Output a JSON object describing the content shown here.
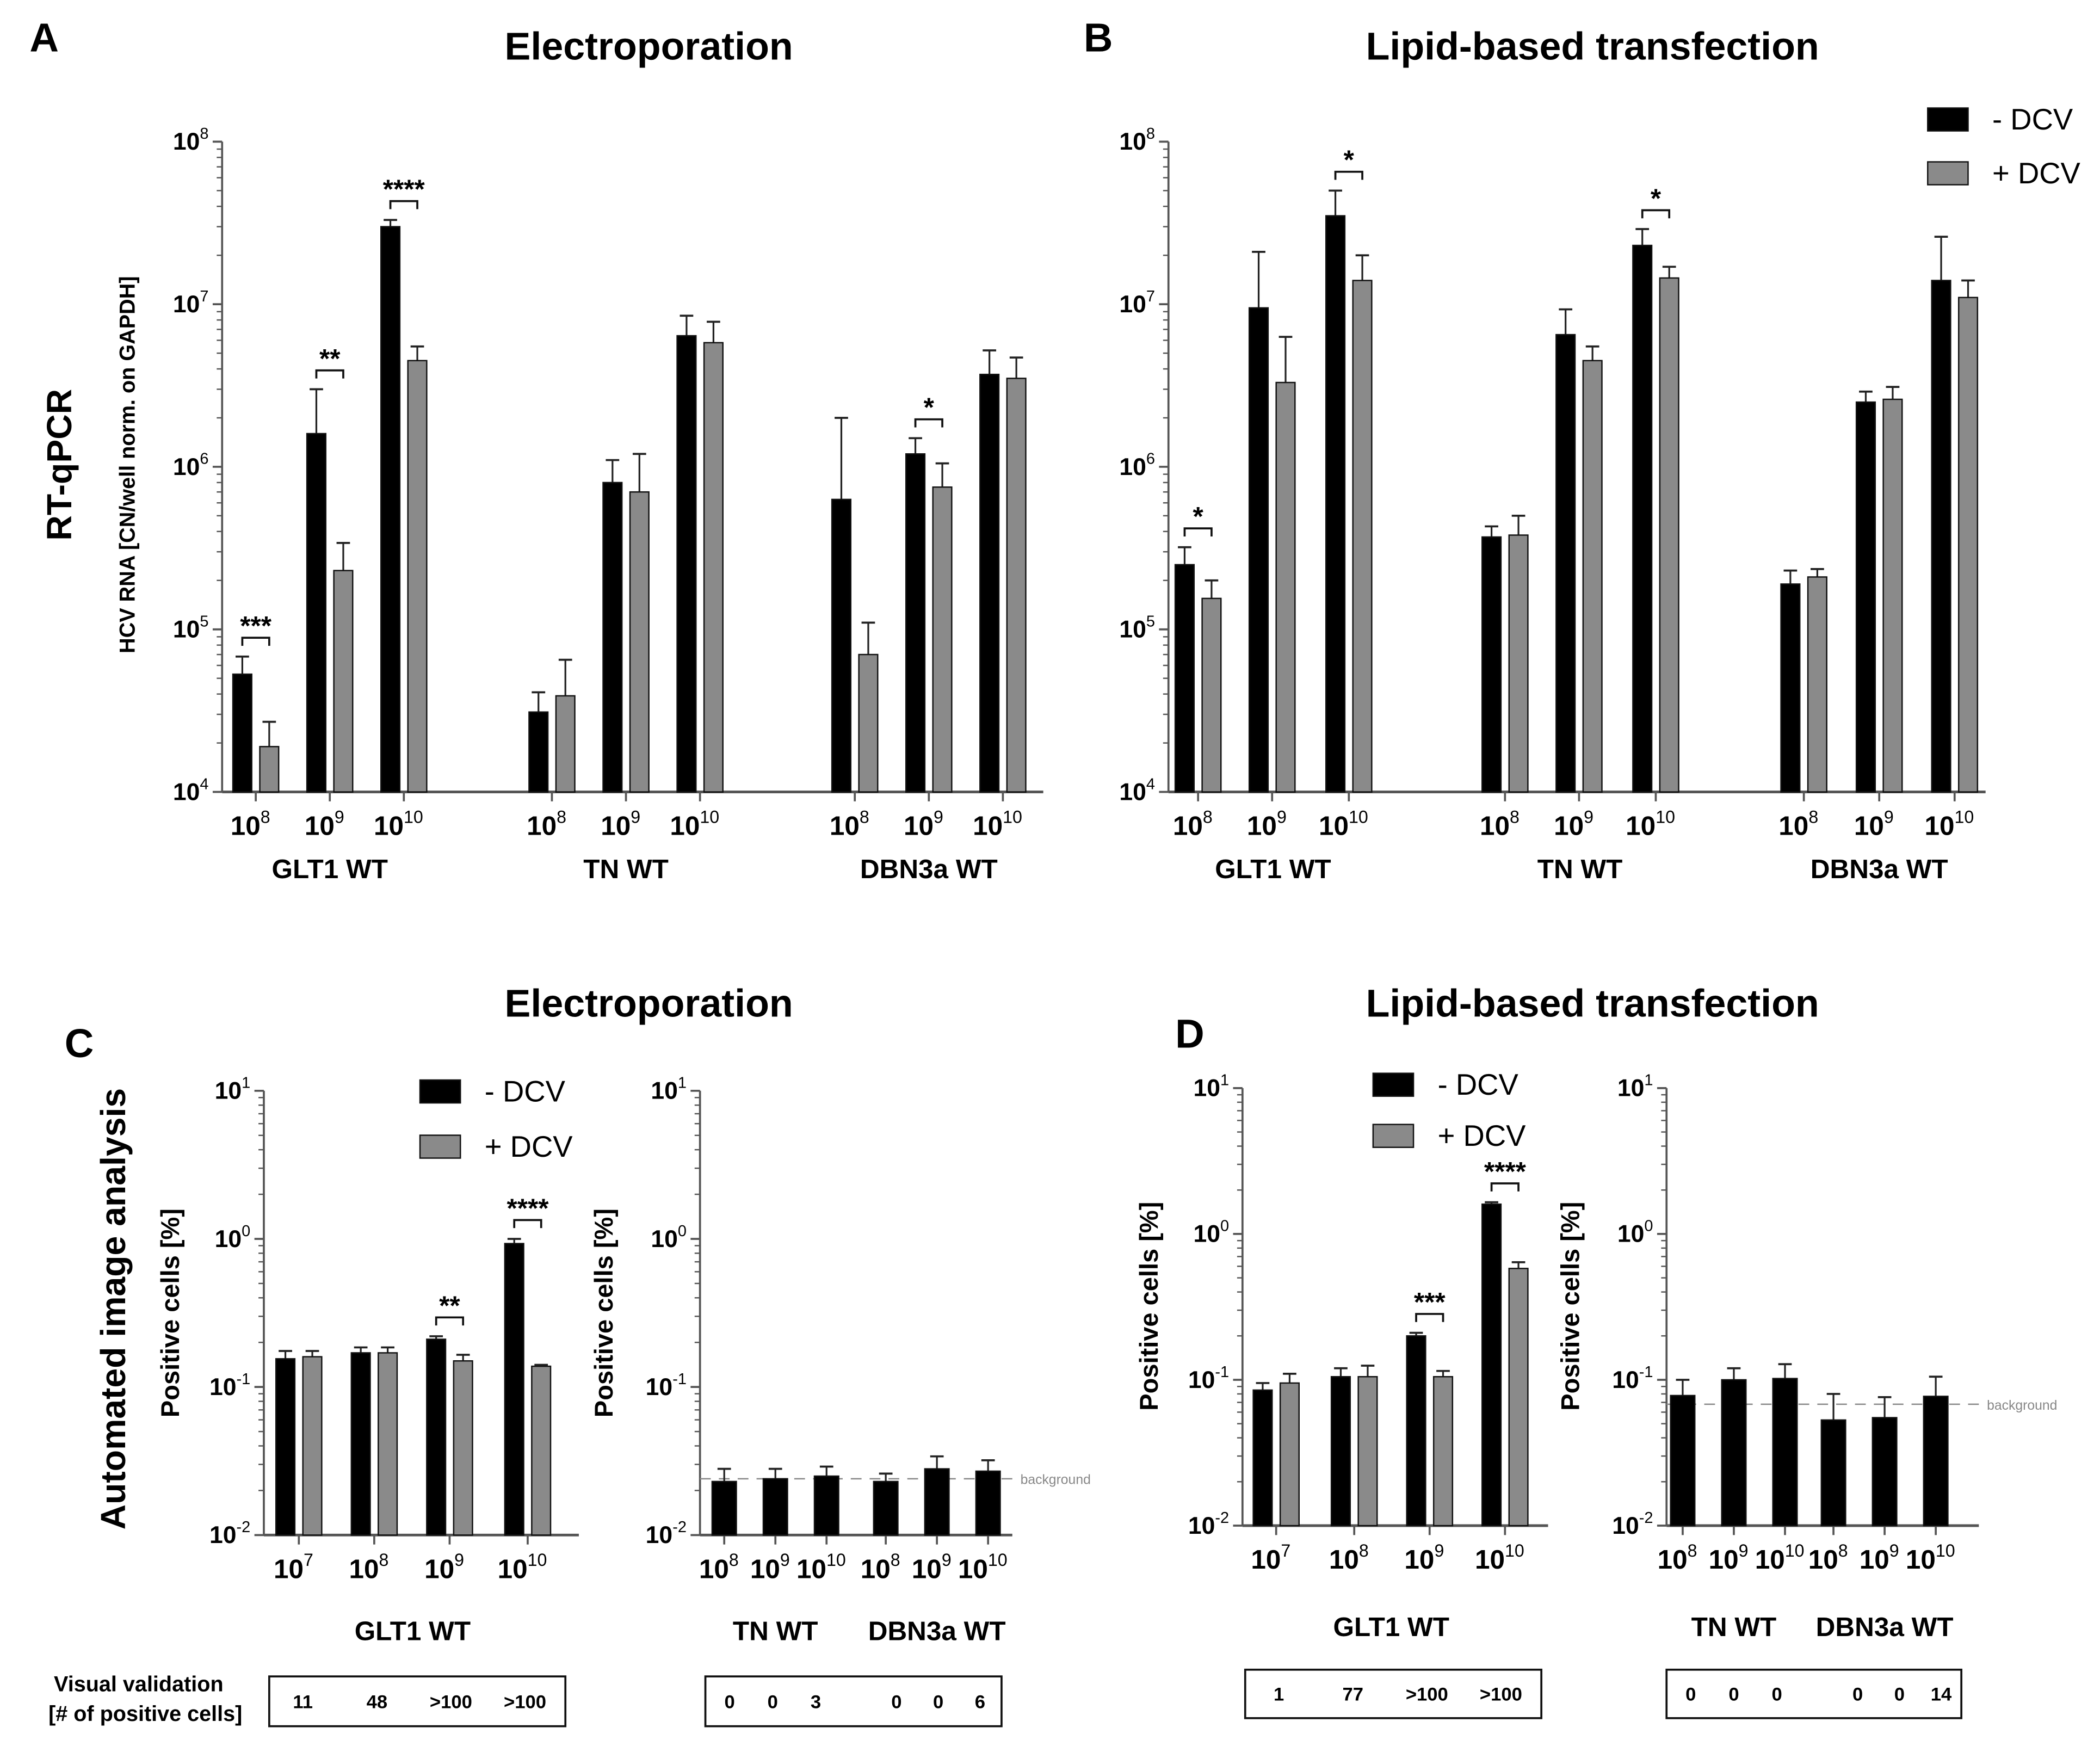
{
  "colors": {
    "minus_dcv": "#000000",
    "plus_dcv": "#8a8a8a",
    "axis": "#555555",
    "background_line": "#888888"
  },
  "row_labels": {
    "top": "RT-qPCR",
    "bottom": "Automated image analysis"
  },
  "validation": {
    "label_line1": "Visual validation",
    "label_line2": "[# of positive cells]",
    "tables": [
      {
        "panel": "C-left",
        "values": [
          "11",
          "48",
          ">100",
          ">100"
        ]
      },
      {
        "panel": "C-right",
        "values": [
          "0",
          "0",
          "3",
          "0",
          "0",
          "6"
        ]
      },
      {
        "panel": "D-left",
        "values": [
          "1",
          "77",
          ">100",
          ">100"
        ]
      },
      {
        "panel": "D-right",
        "values": [
          "0",
          "0",
          "0",
          "0",
          "0",
          "14"
        ]
      }
    ]
  },
  "chart_data": [
    {
      "id": "A",
      "letter": "A",
      "type": "bar",
      "title": "Electroporation",
      "yscale": "log",
      "ylim": [
        10000,
        100000000
      ],
      "ylabel": "HCV RNA [CN/well norm. on GAPDH]",
      "legend": [],
      "series": [
        "- DCV",
        "+ DCV"
      ],
      "groups": [
        {
          "label": "GLT1 WT",
          "categories": [
            {
              "exp": "8",
              "minus": 53000,
              "minus_err": 68000,
              "plus": 19000,
              "plus_err": 27000,
              "sig": "***"
            },
            {
              "exp": "9",
              "minus": 1600000,
              "minus_err": 3000000,
              "plus": 230000,
              "plus_err": 340000,
              "sig": "**"
            },
            {
              "exp": "10",
              "minus": 30000000,
              "minus_err": 33000000,
              "plus": 4500000,
              "plus_err": 5500000,
              "sig": "****"
            }
          ]
        },
        {
          "label": "TN WT",
          "categories": [
            {
              "exp": "8",
              "minus": 31000,
              "minus_err": 41000,
              "plus": 39000,
              "plus_err": 65000,
              "sig": ""
            },
            {
              "exp": "9",
              "minus": 800000,
              "minus_err": 1100000,
              "plus": 700000,
              "plus_err": 1200000,
              "sig": ""
            },
            {
              "exp": "10",
              "minus": 6400000,
              "minus_err": 8500000,
              "plus": 5800000,
              "plus_err": 7800000,
              "sig": ""
            }
          ]
        },
        {
          "label": "DBN3a WT",
          "categories": [
            {
              "exp": "8",
              "minus": 630000,
              "minus_err": 2000000,
              "plus": 70000,
              "plus_err": 110000,
              "sig": ""
            },
            {
              "exp": "9",
              "minus": 1200000,
              "minus_err": 1500000,
              "plus": 750000,
              "plus_err": 1050000,
              "sig": "*"
            },
            {
              "exp": "10",
              "minus": 3700000,
              "minus_err": 5200000,
              "plus": 3500000,
              "plus_err": 4700000,
              "sig": ""
            }
          ]
        }
      ]
    },
    {
      "id": "B",
      "letter": "B",
      "type": "bar",
      "title": "Lipid-based transfection",
      "yscale": "log",
      "ylim": [
        10000,
        100000000
      ],
      "ylabel": "",
      "legend": [
        "- DCV",
        "+ DCV"
      ],
      "series": [
        "- DCV",
        "+ DCV"
      ],
      "groups": [
        {
          "label": "GLT1 WT",
          "categories": [
            {
              "exp": "8",
              "minus": 250000,
              "minus_err": 320000,
              "plus": 155000,
              "plus_err": 200000,
              "sig": "*"
            },
            {
              "exp": "9",
              "minus": 9500000,
              "minus_err": 21000000,
              "plus": 3300000,
              "plus_err": 6300000,
              "sig": ""
            },
            {
              "exp": "10",
              "minus": 35000000,
              "minus_err": 50000000,
              "plus": 14000000,
              "plus_err": 20000000,
              "sig": "*"
            }
          ]
        },
        {
          "label": "TN WT",
          "categories": [
            {
              "exp": "8",
              "minus": 370000,
              "minus_err": 430000,
              "plus": 380000,
              "plus_err": 500000,
              "sig": ""
            },
            {
              "exp": "9",
              "minus": 6500000,
              "minus_err": 9300000,
              "plus": 4500000,
              "plus_err": 5500000,
              "sig": ""
            },
            {
              "exp": "10",
              "minus": 23000000,
              "minus_err": 29000000,
              "plus": 14500000,
              "plus_err": 17000000,
              "sig": "*"
            }
          ]
        },
        {
          "label": "DBN3a WT",
          "categories": [
            {
              "exp": "8",
              "minus": 190000,
              "minus_err": 230000,
              "plus": 210000,
              "plus_err": 235000,
              "sig": ""
            },
            {
              "exp": "9",
              "minus": 2500000,
              "minus_err": 2900000,
              "plus": 2600000,
              "plus_err": 3100000,
              "sig": ""
            },
            {
              "exp": "10",
              "minus": 14000000,
              "minus_err": 26000000,
              "plus": 11000000,
              "plus_err": 14000000,
              "sig": ""
            }
          ]
        }
      ]
    },
    {
      "id": "C-left",
      "letter": "C",
      "type": "bar",
      "title": "Electroporation",
      "yscale": "log",
      "ylim": [
        0.01,
        10
      ],
      "ylabel": "Positive cells [%]",
      "legend": [
        "- DCV",
        "+ DCV"
      ],
      "series": [
        "- DCV",
        "+ DCV"
      ],
      "groups": [
        {
          "label": "GLT1 WT",
          "categories": [
            {
              "exp": "7",
              "minus": 0.155,
              "minus_err": 0.175,
              "plus": 0.16,
              "plus_err": 0.175,
              "sig": ""
            },
            {
              "exp": "8",
              "minus": 0.17,
              "minus_err": 0.185,
              "plus": 0.17,
              "plus_err": 0.185,
              "sig": ""
            },
            {
              "exp": "9",
              "minus": 0.21,
              "minus_err": 0.22,
              "plus": 0.15,
              "plus_err": 0.165,
              "sig": "**"
            },
            {
              "exp": "10",
              "minus": 0.93,
              "minus_err": 1.0,
              "plus": 0.138,
              "plus_err": 0.141,
              "sig": "****"
            }
          ]
        }
      ]
    },
    {
      "id": "C-right",
      "letter": "",
      "type": "bar",
      "title": "",
      "yscale": "log",
      "ylim": [
        0.01,
        10
      ],
      "ylabel": "Positive cells [%]",
      "legend": [],
      "background_label": "background",
      "background_value": 0.024,
      "series": [
        "- DCV"
      ],
      "groups": [
        {
          "label": "TN WT",
          "categories": [
            {
              "exp": "8",
              "minus": 0.023,
              "minus_err": 0.028
            },
            {
              "exp": "9",
              "minus": 0.024,
              "minus_err": 0.028
            },
            {
              "exp": "10",
              "minus": 0.025,
              "minus_err": 0.029
            }
          ]
        },
        {
          "label": "DBN3a WT",
          "categories": [
            {
              "exp": "8",
              "minus": 0.023,
              "minus_err": 0.026
            },
            {
              "exp": "9",
              "minus": 0.028,
              "minus_err": 0.034
            },
            {
              "exp": "10",
              "minus": 0.027,
              "minus_err": 0.032
            }
          ]
        }
      ]
    },
    {
      "id": "D-left",
      "letter": "D",
      "type": "bar",
      "title": "Lipid-based transfection",
      "yscale": "log",
      "ylim": [
        0.01,
        10
      ],
      "ylabel": "Positive cells [%]",
      "legend": [
        "- DCV",
        "+ DCV"
      ],
      "series": [
        "- DCV",
        "+ DCV"
      ],
      "groups": [
        {
          "label": "GLT1 WT",
          "categories": [
            {
              "exp": "7",
              "minus": 0.085,
              "minus_err": 0.095,
              "plus": 0.095,
              "plus_err": 0.11,
              "sig": ""
            },
            {
              "exp": "8",
              "minus": 0.105,
              "minus_err": 0.12,
              "plus": 0.105,
              "plus_err": 0.125,
              "sig": ""
            },
            {
              "exp": "9",
              "minus": 0.2,
              "minus_err": 0.21,
              "plus": 0.105,
              "plus_err": 0.115,
              "sig": "***"
            },
            {
              "exp": "10",
              "minus": 1.6,
              "minus_err": 1.65,
              "plus": 0.58,
              "plus_err": 0.64,
              "sig": "****"
            }
          ]
        }
      ]
    },
    {
      "id": "D-right",
      "letter": "",
      "type": "bar",
      "title": "",
      "yscale": "log",
      "ylim": [
        0.01,
        10
      ],
      "ylabel": "Positive cells [%]",
      "legend": [],
      "background_label": "background",
      "background_value": 0.068,
      "series": [
        "- DCV"
      ],
      "groups": [
        {
          "label": "TN WT",
          "categories": [
            {
              "exp": "8",
              "minus": 0.078,
              "minus_err": 0.1
            },
            {
              "exp": "9",
              "minus": 0.1,
              "minus_err": 0.12
            },
            {
              "exp": "10",
              "minus": 0.102,
              "minus_err": 0.128
            }
          ]
        },
        {
          "label": "DBN3a WT",
          "categories": [
            {
              "exp": "8",
              "minus": 0.053,
              "minus_err": 0.08
            },
            {
              "exp": "9",
              "minus": 0.055,
              "minus_err": 0.076
            },
            {
              "exp": "10",
              "minus": 0.077,
              "minus_err": 0.105
            }
          ]
        }
      ]
    }
  ]
}
